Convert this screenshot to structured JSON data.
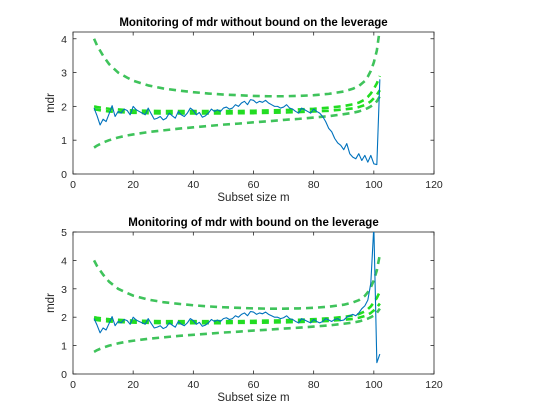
{
  "chart_data": [
    {
      "type": "line",
      "title": "Monitoring of mdr without bound on the leverage",
      "xlabel": "Subset size m",
      "ylabel": "mdr",
      "xlim": [
        0,
        120
      ],
      "ylim": [
        0,
        4.2
      ],
      "xticks": [
        0,
        20,
        40,
        60,
        80,
        100,
        120
      ],
      "yticks": [
        0,
        1,
        2,
        3,
        4
      ],
      "grid": false,
      "series": [
        {
          "role": "envelope-outer",
          "style": "dashed",
          "color": "#3fc35b",
          "x": [
            7,
            8,
            10,
            12,
            15,
            18,
            20,
            25,
            30,
            35,
            40,
            45,
            50,
            55,
            60,
            65,
            70,
            75,
            80,
            85,
            90,
            93,
            95,
            97,
            98,
            99,
            100,
            101,
            102
          ],
          "upper": [
            4.0,
            3.8,
            3.5,
            3.25,
            3.0,
            2.85,
            2.76,
            2.62,
            2.53,
            2.47,
            2.42,
            2.38,
            2.35,
            2.33,
            2.31,
            2.3,
            2.3,
            2.31,
            2.33,
            2.37,
            2.44,
            2.52,
            2.6,
            2.75,
            2.88,
            3.05,
            3.3,
            3.65,
            4.3
          ],
          "lower": [
            0.78,
            0.84,
            0.93,
            1.0,
            1.08,
            1.14,
            1.17,
            1.24,
            1.29,
            1.34,
            1.38,
            1.42,
            1.46,
            1.49,
            1.53,
            1.56,
            1.6,
            1.63,
            1.67,
            1.71,
            1.77,
            1.81,
            1.85,
            1.91,
            1.95,
            2.0,
            2.06,
            2.15,
            2.3
          ]
        },
        {
          "role": "envelope-inner",
          "style": "dashed",
          "color": "#22dd22",
          "x": [
            7,
            8,
            10,
            12,
            15,
            18,
            20,
            25,
            30,
            35,
            40,
            45,
            50,
            55,
            60,
            65,
            70,
            75,
            80,
            85,
            90,
            93,
            95,
            97,
            98,
            99,
            100,
            101,
            102
          ],
          "upper": [
            2.0,
            1.98,
            1.95,
            1.93,
            1.91,
            1.89,
            1.88,
            1.87,
            1.86,
            1.86,
            1.86,
            1.86,
            1.86,
            1.86,
            1.87,
            1.88,
            1.89,
            1.91,
            1.93,
            1.96,
            2.01,
            2.06,
            2.11,
            2.2,
            2.28,
            2.38,
            2.52,
            2.68,
            2.9
          ],
          "lower": [
            1.92,
            1.9,
            1.87,
            1.85,
            1.83,
            1.82,
            1.81,
            1.8,
            1.79,
            1.79,
            1.79,
            1.79,
            1.79,
            1.8,
            1.8,
            1.81,
            1.82,
            1.83,
            1.85,
            1.87,
            1.91,
            1.94,
            1.98,
            2.04,
            2.09,
            2.15,
            2.24,
            2.34,
            2.48
          ]
        },
        {
          "role": "monitoring",
          "style": "solid",
          "color": "#0072bd",
          "x": [
            7,
            8,
            9,
            10,
            11,
            12,
            13,
            14,
            15,
            16,
            17,
            18,
            19,
            20,
            21,
            22,
            23,
            24,
            25,
            26,
            27,
            28,
            29,
            30,
            31,
            32,
            33,
            34,
            35,
            36,
            37,
            38,
            39,
            40,
            41,
            42,
            43,
            44,
            45,
            46,
            47,
            48,
            49,
            50,
            51,
            52,
            53,
            54,
            55,
            56,
            57,
            58,
            59,
            60,
            61,
            62,
            63,
            64,
            65,
            66,
            67,
            68,
            69,
            70,
            71,
            72,
            73,
            74,
            75,
            76,
            77,
            78,
            79,
            80,
            81,
            82,
            83,
            84,
            85,
            86,
            87,
            88,
            89,
            90,
            91,
            92,
            93,
            94,
            95,
            96,
            97,
            98,
            99,
            100,
            101,
            102
          ],
          "y": [
            1.95,
            1.72,
            1.45,
            1.62,
            1.55,
            1.78,
            2.02,
            1.7,
            1.85,
            1.8,
            1.92,
            1.88,
            1.75,
            2.0,
            1.9,
            1.85,
            1.8,
            1.75,
            1.95,
            1.78,
            1.62,
            1.65,
            1.7,
            1.6,
            1.65,
            1.8,
            1.72,
            1.65,
            1.85,
            1.75,
            1.7,
            1.8,
            1.95,
            1.88,
            1.75,
            1.82,
            1.68,
            1.72,
            1.8,
            1.92,
            1.85,
            1.9,
            1.85,
            1.95,
            1.98,
            1.92,
            1.95,
            2.05,
            2.0,
            2.1,
            2.15,
            2.05,
            2.2,
            2.18,
            2.1,
            2.15,
            2.12,
            2.18,
            2.1,
            2.05,
            2.0,
            2.0,
            1.95,
            1.98,
            2.05,
            1.95,
            1.92,
            1.85,
            1.8,
            1.95,
            1.9,
            1.85,
            1.8,
            1.92,
            1.85,
            1.8,
            1.7,
            1.55,
            1.35,
            1.25,
            1.05,
            0.92,
            0.85,
            0.72,
            0.9,
            0.6,
            0.5,
            0.45,
            0.6,
            0.4,
            0.55,
            0.35,
            0.55,
            0.3,
            0.28,
            2.8
          ]
        }
      ]
    },
    {
      "type": "line",
      "title": "Monitoring of mdr with bound on the leverage",
      "xlabel": "Subset size m",
      "ylabel": "mdr",
      "xlim": [
        0,
        120
      ],
      "ylim": [
        0,
        5
      ],
      "xticks": [
        0,
        20,
        40,
        60,
        80,
        100,
        120
      ],
      "yticks": [
        0,
        1,
        2,
        3,
        4,
        5
      ],
      "grid": false,
      "series": [
        {
          "role": "envelope-outer",
          "style": "dashed",
          "color": "#3fc35b",
          "x": [
            7,
            8,
            10,
            12,
            15,
            18,
            20,
            25,
            30,
            35,
            40,
            45,
            50,
            55,
            60,
            65,
            70,
            75,
            80,
            85,
            90,
            93,
            95,
            97,
            98,
            99,
            100,
            101,
            102
          ],
          "upper": [
            4.0,
            3.8,
            3.5,
            3.25,
            3.0,
            2.85,
            2.76,
            2.62,
            2.53,
            2.47,
            2.42,
            2.38,
            2.35,
            2.33,
            2.31,
            2.3,
            2.3,
            2.31,
            2.33,
            2.37,
            2.44,
            2.52,
            2.6,
            2.75,
            2.88,
            3.05,
            3.3,
            3.65,
            4.2
          ],
          "lower": [
            0.78,
            0.84,
            0.93,
            1.0,
            1.08,
            1.14,
            1.17,
            1.24,
            1.29,
            1.34,
            1.38,
            1.42,
            1.46,
            1.49,
            1.53,
            1.56,
            1.6,
            1.63,
            1.67,
            1.71,
            1.77,
            1.81,
            1.85,
            1.91,
            1.95,
            2.0,
            2.06,
            2.15,
            2.3
          ]
        },
        {
          "role": "envelope-inner",
          "style": "dashed",
          "color": "#22dd22",
          "x": [
            7,
            8,
            10,
            12,
            15,
            18,
            20,
            25,
            30,
            35,
            40,
            45,
            50,
            55,
            60,
            65,
            70,
            75,
            80,
            85,
            90,
            93,
            95,
            97,
            98,
            99,
            100,
            101,
            102
          ],
          "upper": [
            2.0,
            1.98,
            1.95,
            1.93,
            1.91,
            1.89,
            1.88,
            1.87,
            1.86,
            1.86,
            1.86,
            1.86,
            1.86,
            1.86,
            1.87,
            1.88,
            1.89,
            1.91,
            1.93,
            1.96,
            2.01,
            2.06,
            2.11,
            2.2,
            2.28,
            2.38,
            2.52,
            2.68,
            2.9
          ],
          "lower": [
            1.92,
            1.9,
            1.87,
            1.85,
            1.83,
            1.82,
            1.81,
            1.8,
            1.79,
            1.79,
            1.79,
            1.79,
            1.79,
            1.8,
            1.8,
            1.81,
            1.82,
            1.83,
            1.85,
            1.87,
            1.91,
            1.94,
            1.98,
            2.04,
            2.09,
            2.15,
            2.24,
            2.34,
            2.48
          ]
        },
        {
          "role": "monitoring",
          "style": "solid",
          "color": "#0072bd",
          "x": [
            7,
            8,
            9,
            10,
            11,
            12,
            13,
            14,
            15,
            16,
            17,
            18,
            19,
            20,
            21,
            22,
            23,
            24,
            25,
            26,
            27,
            28,
            29,
            30,
            31,
            32,
            33,
            34,
            35,
            36,
            37,
            38,
            39,
            40,
            41,
            42,
            43,
            44,
            45,
            46,
            47,
            48,
            49,
            50,
            51,
            52,
            53,
            54,
            55,
            56,
            57,
            58,
            59,
            60,
            61,
            62,
            63,
            64,
            65,
            66,
            67,
            68,
            69,
            70,
            71,
            72,
            73,
            74,
            75,
            76,
            77,
            78,
            79,
            80,
            81,
            82,
            83,
            84,
            85,
            86,
            87,
            88,
            89,
            90,
            91,
            92,
            93,
            94,
            95,
            96,
            97,
            98,
            99,
            100,
            101,
            102
          ],
          "y": [
            1.95,
            1.72,
            1.45,
            1.62,
            1.55,
            1.78,
            2.02,
            1.7,
            1.85,
            1.8,
            1.92,
            1.88,
            1.75,
            2.0,
            1.9,
            1.85,
            1.8,
            1.75,
            1.95,
            1.78,
            1.62,
            1.65,
            1.7,
            1.6,
            1.65,
            1.8,
            1.72,
            1.65,
            1.85,
            1.75,
            1.7,
            1.8,
            1.95,
            1.88,
            1.75,
            1.82,
            1.68,
            1.72,
            1.8,
            1.92,
            1.85,
            1.9,
            1.85,
            1.95,
            1.98,
            1.92,
            1.95,
            2.05,
            2.0,
            2.1,
            2.15,
            2.05,
            2.2,
            2.18,
            2.1,
            2.15,
            2.12,
            2.18,
            2.1,
            2.05,
            2.0,
            2.0,
            1.95,
            1.98,
            2.05,
            1.95,
            1.92,
            1.85,
            1.8,
            1.95,
            1.9,
            1.85,
            1.8,
            1.92,
            1.85,
            1.8,
            1.85,
            1.95,
            1.9,
            1.85,
            1.92,
            1.95,
            1.88,
            1.9,
            2.0,
            2.05,
            2.1,
            2.05,
            2.15,
            2.3,
            2.4,
            2.6,
            3.2,
            5.2,
            0.4,
            0.7
          ]
        }
      ]
    }
  ]
}
